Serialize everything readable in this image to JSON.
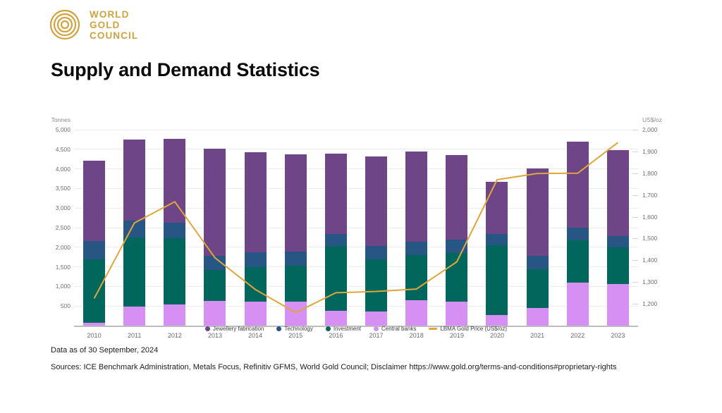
{
  "logo": {
    "lines": [
      "WORLD",
      "GOLD",
      "COUNCIL"
    ],
    "color": "#D0A33E"
  },
  "page_title": "Supply and Demand Statistics",
  "chart_data": {
    "type": "bar",
    "subtype": "stacked-bars-with-line-overlay",
    "title": "Supply and Demand Statistics",
    "categories": [
      "2010",
      "2011",
      "2012",
      "2013",
      "2014",
      "2015",
      "2016",
      "2017",
      "2018",
      "2019",
      "2020",
      "2021",
      "2022",
      "2023"
    ],
    "series": [
      {
        "name": "Jewellery fabrication",
        "color": "#6E4586",
        "values": [
          2050,
          2070,
          2140,
          2740,
          2560,
          2480,
          2050,
          2290,
          2300,
          2160,
          1330,
          2245,
          2195,
          2190
        ]
      },
      {
        "name": "Technology",
        "color": "#285684",
        "pattern": "dots",
        "values": [
          465,
          430,
          395,
          355,
          380,
          360,
          310,
          335,
          340,
          340,
          290,
          340,
          325,
          290
        ]
      },
      {
        "name": "Investment",
        "color": "#01675C",
        "pattern": "dots",
        "values": [
          1610,
          1770,
          1680,
          790,
          880,
          920,
          1645,
          1330,
          1155,
          1250,
          1785,
          985,
          1085,
          940
        ]
      },
      {
        "name": "Central banks",
        "color": "#D68FF2",
        "values": [
          80,
          480,
          545,
          630,
          610,
          610,
          385,
          365,
          650,
          605,
          270,
          450,
          1095,
          1060
        ]
      }
    ],
    "line_series": {
      "name": "LBMA Gold Price (US$/oz)",
      "color": "#E0A63A",
      "axis": "right",
      "values": [
        1225,
        1572,
        1669,
        1411,
        1266,
        1160,
        1251,
        1257,
        1268,
        1393,
        1770,
        1799,
        1800,
        1941
      ]
    },
    "left_axis": {
      "label": "Tonnes",
      "min": 0,
      "max": 5000,
      "tick_step": 500
    },
    "right_axis": {
      "label": "US$/oz",
      "min": 1100,
      "max": 2000,
      "tick_start": 1200,
      "tick_step": 100
    },
    "legend_position": "bottom-center",
    "grid": "horizontal"
  },
  "footer": {
    "data_as_of": "Data as of 30 September, 2024",
    "sources": "Sources: ICE Benchmark Administration, Metals Focus, Refinitiv GFMS, World Gold Council; Disclaimer https://www.gold.org/terms-and-conditions#proprietary-rights"
  }
}
